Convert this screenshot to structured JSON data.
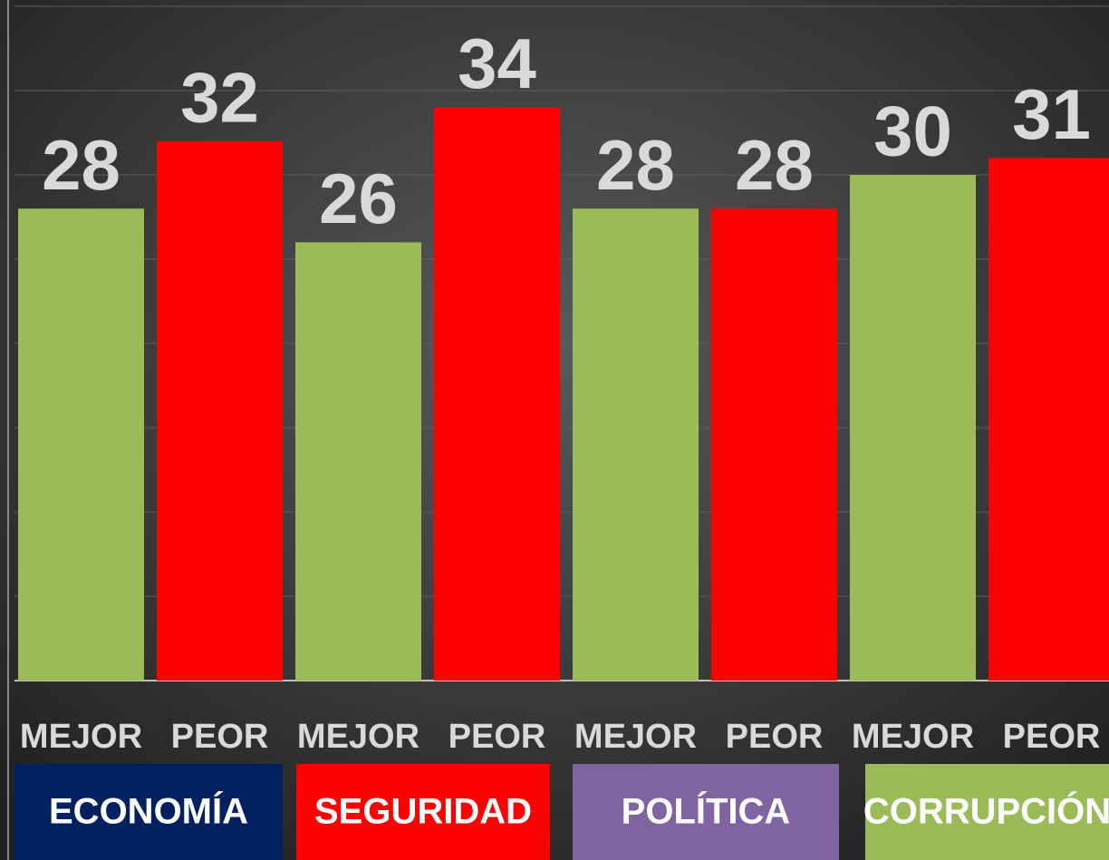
{
  "chart_data": {
    "type": "bar",
    "categories": [
      "MEJOR",
      "PEOR",
      "MEJOR",
      "PEOR",
      "MEJOR",
      "PEOR",
      "MEJOR",
      "PEOR"
    ],
    "values": [
      28,
      32,
      26,
      34,
      28,
      28,
      30,
      31
    ],
    "colors": [
      "#9bbb59",
      "#ff0000",
      "#9bbb59",
      "#ff0000",
      "#9bbb59",
      "#ff0000",
      "#9bbb59",
      "#ff0000"
    ],
    "groups": [
      {
        "label": "ECONOMÍA",
        "color": "#002060"
      },
      {
        "label": "SEGURIDAD",
        "color": "#ff0000"
      },
      {
        "label": "POLÍTICA",
        "color": "#8064a2"
      },
      {
        "label": "CORRUPCIÓN",
        "color": "#9bbb59"
      }
    ],
    "ylim": [
      0,
      40
    ],
    "yticks": [
      0,
      5,
      10,
      15,
      20,
      25,
      30,
      35,
      40
    ],
    "grid": true
  }
}
